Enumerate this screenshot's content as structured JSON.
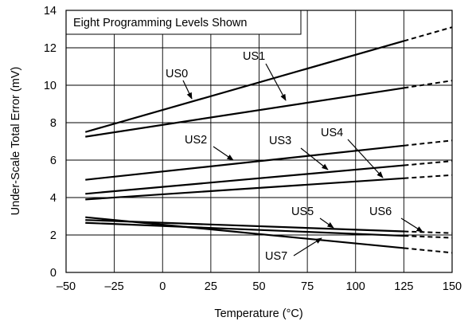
{
  "chart_data": {
    "type": "line",
    "title": "",
    "annotation": "Eight  Programming Levels Shown",
    "xlabel": "Temperature (°C)",
    "ylabel": "Under-Scale Total Error (mV)",
    "xlim": [
      -50,
      150
    ],
    "ylim": [
      0,
      14
    ],
    "x_ticks": [
      -50,
      -25,
      0,
      25,
      50,
      75,
      100,
      125,
      150
    ],
    "y_ticks": [
      0,
      2,
      4,
      6,
      8,
      10,
      12,
      14
    ],
    "x_tick_labels": [
      "–50",
      "–25",
      "0",
      "25",
      "50",
      "75",
      "100",
      "125",
      "150"
    ],
    "y_tick_labels": [
      "0",
      "2",
      "4",
      "6",
      "8",
      "10",
      "12",
      "14"
    ],
    "grid": true,
    "legend": "none (series labeled on plot with leader arrows)",
    "dashed_from_x": 125,
    "series": [
      {
        "name": "US0",
        "x": [
          -40,
          150
        ],
        "y": [
          7.5,
          13.1
        ]
      },
      {
        "name": "US1",
        "x": [
          -40,
          150
        ],
        "y": [
          7.25,
          10.25
        ]
      },
      {
        "name": "US2",
        "x": [
          -40,
          150
        ],
        "y": [
          4.95,
          7.05
        ]
      },
      {
        "name": "US3",
        "x": [
          -40,
          150
        ],
        "y": [
          4.2,
          5.95
        ]
      },
      {
        "name": "US4",
        "x": [
          -40,
          150
        ],
        "y": [
          3.9,
          5.2
        ]
      },
      {
        "name": "US5",
        "x": [
          -40,
          150
        ],
        "y": [
          2.8,
          2.1
        ]
      },
      {
        "name": "US6",
        "x": [
          -40,
          150
        ],
        "y": [
          2.65,
          1.85
        ]
      },
      {
        "name": "US7",
        "x": [
          -40,
          150
        ],
        "y": [
          2.95,
          1.05
        ]
      }
    ]
  }
}
